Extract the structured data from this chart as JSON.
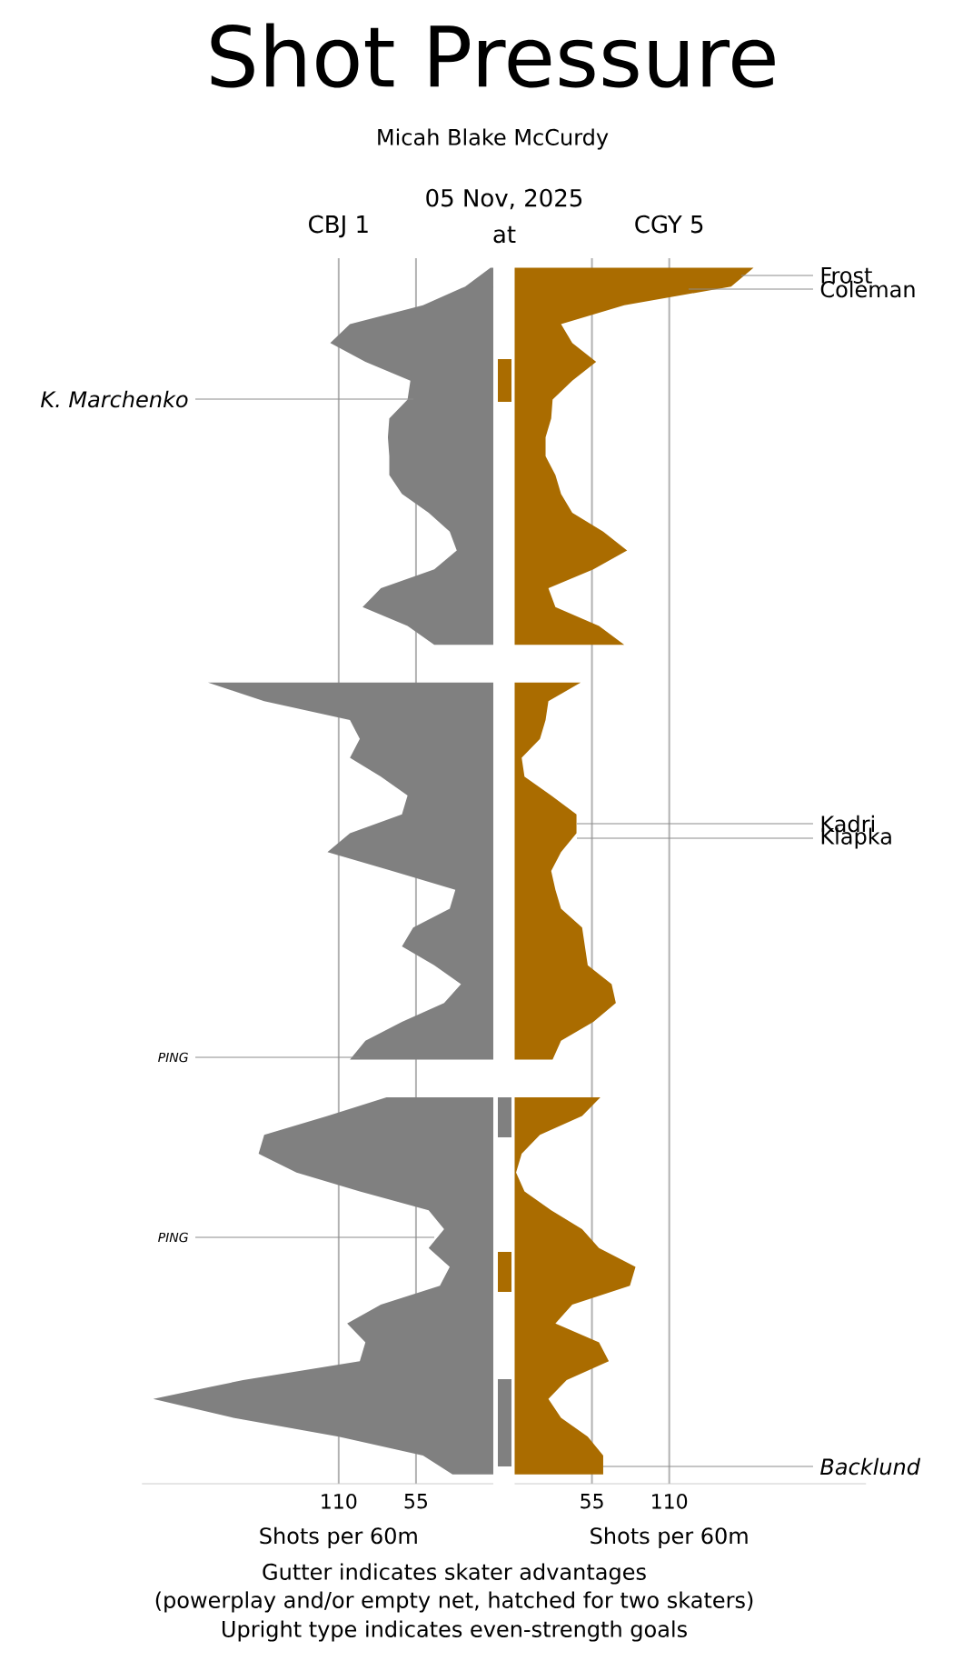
{
  "chart_data": [
    {
      "type": "area",
      "orientation": "horizontal",
      "title": "Shot Pressure",
      "subtitle": "Micah Blake McCurdy",
      "categories": [
        null,
        null,
        null,
        null,
        null,
        null,
        null,
        null,
        null,
        null,
        null,
        null,
        null,
        null,
        null,
        null,
        null,
        null,
        null,
        null,
        null,
        null,
        null,
        null,
        null,
        null,
        null,
        null,
        null,
        null,
        null,
        null,
        null,
        null,
        null,
        null,
        null,
        null,
        null,
        null,
        null,
        null,
        null,
        null,
        null,
        null,
        null,
        null,
        null,
        null,
        null,
        null,
        null,
        null,
        null,
        null,
        null,
        null,
        null,
        null,
        null,
        null,
        null,
        null,
        null
      ],
      "series": [
        {
          "name": "CBJ 1",
          "color": "#808080",
          "values": [
            2,
            20,
            50,
            102,
            116,
            91,
            59,
            61,
            74,
            75,
            74,
            74,
            65,
            46,
            31,
            26,
            42,
            80,
            93,
            61,
            42,
            null,
            203,
            163,
            102,
            95,
            102,
            80,
            61,
            65,
            102,
            118,
            72,
            27,
            31,
            57,
            65,
            42,
            23,
            35,
            65,
            91,
            102,
            null,
            76,
            118,
            163,
            167,
            140,
            95,
            46,
            35,
            46,
            31,
            38,
            80,
            104,
            91,
            95,
            178,
            242,
            185,
            110,
            50,
            29
          ]
        }
      ],
      "xlim": [
        250,
        0
      ],
      "xticks": [
        110,
        55
      ],
      "xlabel": "Shots per 60m",
      "tick_labels": "x",
      "grid": "x",
      "annotations": [
        "05 Nov, 2025",
        "at",
        "*K. Marchenko*",
        "*PING*",
        "*PING*"
      ]
    },
    {
      "type": "area",
      "orientation": "horizontal",
      "categories": [
        null,
        null,
        null,
        null,
        null,
        null,
        null,
        null,
        null,
        null,
        null,
        null,
        null,
        null,
        null,
        null,
        null,
        null,
        null,
        null,
        null,
        null,
        null,
        null,
        null,
        null,
        null,
        null,
        null,
        null,
        null,
        null,
        null,
        null,
        null,
        null,
        null,
        null,
        null,
        null,
        null,
        null,
        null,
        null,
        null,
        null,
        null,
        null,
        null,
        null,
        null,
        null,
        null,
        null,
        null,
        null,
        null,
        null,
        null,
        null,
        null,
        null,
        null,
        null,
        null
      ],
      "series": [
        {
          "name": "CGY 5",
          "color": "#aa6c00",
          "values": [
            170,
            154,
            78,
            33,
            41,
            58,
            41,
            27,
            26,
            22,
            22,
            29,
            33,
            41,
            63,
            80,
            56,
            24,
            29,
            60,
            78,
            null,
            47,
            24,
            22,
            18,
            5,
            7,
            26,
            44,
            44,
            33,
            26,
            29,
            33,
            48,
            50,
            52,
            69,
            72,
            56,
            33,
            27,
            null,
            61,
            48,
            18,
            5,
            1,
            7,
            26,
            48,
            60,
            86,
            82,
            41,
            29,
            60,
            67,
            37,
            24,
            33,
            52,
            63,
            63
          ]
        }
      ],
      "xlim": [
        0,
        250
      ],
      "xticks": [
        55,
        110
      ],
      "xlabel": "Shots per 60m",
      "tick_labels": "x",
      "grid": "x",
      "annotations": [
        "Frost",
        "Coleman",
        "Kadri",
        "Klapka",
        "*Backlund*",
        "Gutter indicates skater advantages",
        "(powerplay and/or empty net, hatched for two skaters)",
        "Upright type indicates even-strength goals"
      ]
    }
  ]
}
